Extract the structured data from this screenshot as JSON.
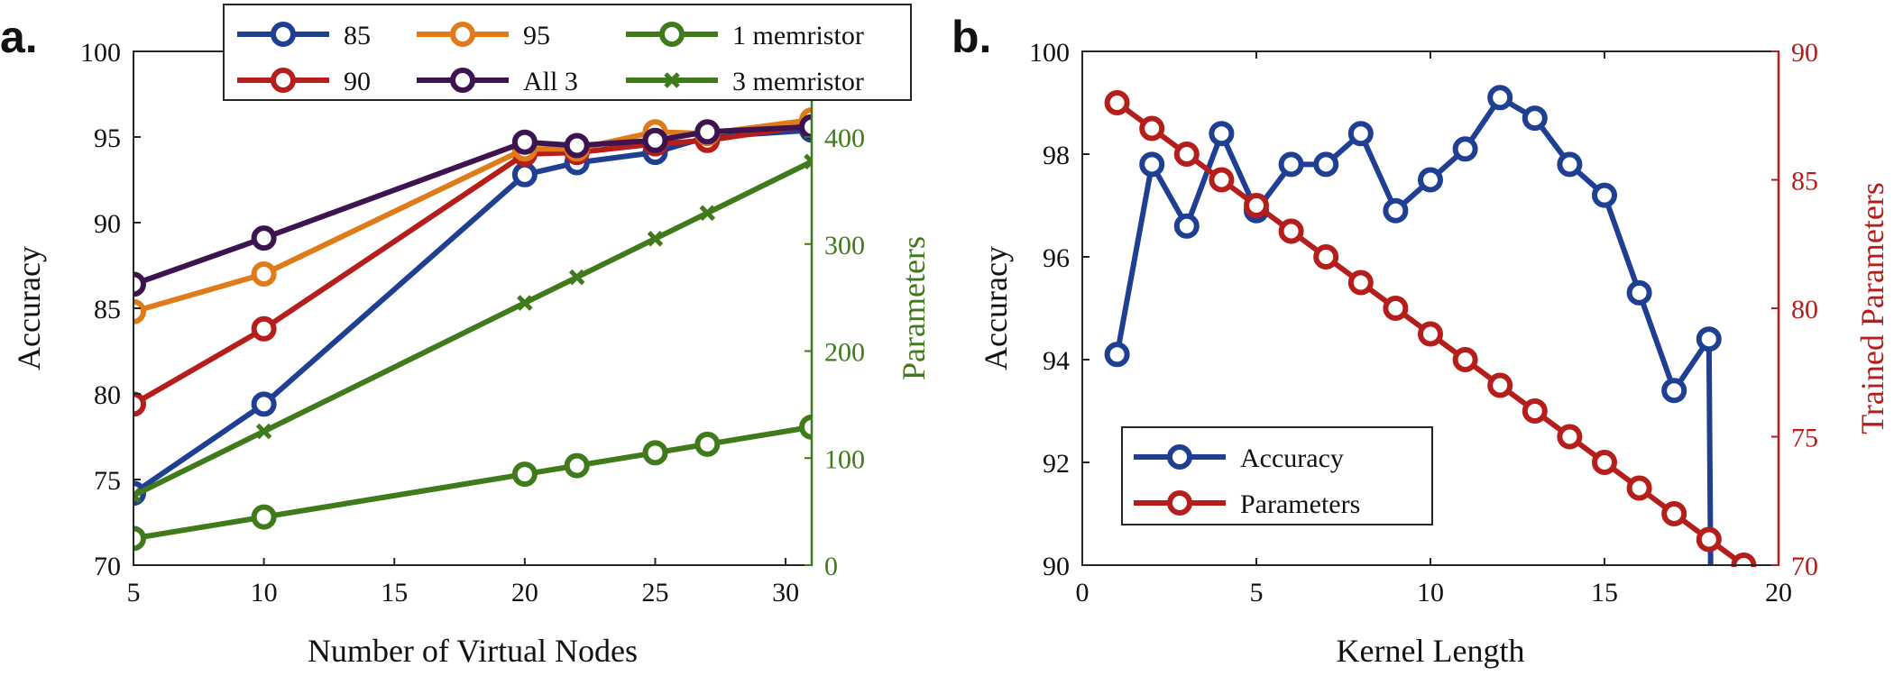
{
  "colors": {
    "blue": "#1f3f93",
    "red": "#b51e1a",
    "orange": "#e07b1a",
    "purple": "#3d1450",
    "green": "#3f7a1b",
    "axis": "#262626",
    "right_red": "#b51e1a"
  },
  "chart_data": [
    {
      "panel_label": "a.",
      "type": "line",
      "xlabel": "Number of Virtual Nodes",
      "ylabel": "Accuracy",
      "ylabel_right": "Parameters",
      "xlim": [
        5,
        31
      ],
      "ylim": [
        70,
        100
      ],
      "ylim_right": [
        0,
        480
      ],
      "x_ticks": [
        "5",
        "10",
        "15",
        "20",
        "25",
        "30"
      ],
      "y_ticks": [
        "70",
        "75",
        "80",
        "85",
        "90",
        "95",
        "100"
      ],
      "y_ticks_right": [
        "0",
        "100",
        "200",
        "300",
        "400"
      ],
      "legend_position": "top",
      "series": [
        {
          "name": "85",
          "color_key": "blue",
          "marker": "circle",
          "axis": "left",
          "x": [
            5,
            10,
            20,
            22,
            25,
            27,
            31
          ],
          "y": [
            74.2,
            79.4,
            92.8,
            93.5,
            94.1,
            95.0,
            95.4
          ]
        },
        {
          "name": "90",
          "color_key": "red",
          "marker": "circle",
          "axis": "left",
          "x": [
            5,
            10,
            20,
            22,
            25,
            27,
            31
          ],
          "y": [
            79.4,
            83.8,
            94.0,
            94.1,
            94.6,
            94.8,
            95.7
          ]
        },
        {
          "name": "95",
          "color_key": "orange",
          "marker": "circle",
          "axis": "left",
          "x": [
            5,
            10,
            20,
            22,
            25,
            27,
            31
          ],
          "y": [
            84.8,
            87.0,
            94.3,
            94.3,
            95.3,
            95.2,
            96.0
          ]
        },
        {
          "name": "All 3",
          "color_key": "purple",
          "marker": "circle",
          "axis": "left",
          "x": [
            5,
            10,
            20,
            22,
            25,
            27,
            31
          ],
          "y": [
            86.4,
            89.1,
            94.7,
            94.5,
            94.8,
            95.3,
            95.6
          ]
        },
        {
          "name": "1 memristor",
          "color_key": "green",
          "marker": "circle",
          "axis": "right",
          "x": [
            5,
            10,
            20,
            22,
            25,
            27,
            31
          ],
          "y": [
            25,
            45,
            85,
            93,
            105,
            113,
            129
          ]
        },
        {
          "name": "3 memristor",
          "color_key": "green",
          "marker": "x",
          "axis": "right",
          "x": [
            5,
            10,
            20,
            22,
            25,
            27,
            31
          ],
          "y": [
            65,
            125,
            245,
            269,
            305,
            329,
            377
          ]
        }
      ]
    },
    {
      "panel_label": "b.",
      "type": "line",
      "xlabel": "Kernel Length",
      "ylabel": "Accuracy",
      "ylabel_right": "Trained Parameters",
      "xlim": [
        0,
        20
      ],
      "ylim": [
        90,
        100
      ],
      "ylim_right": [
        70,
        90
      ],
      "x_ticks": [
        "0",
        "5",
        "10",
        "15",
        "20"
      ],
      "y_ticks": [
        "90",
        "92",
        "94",
        "96",
        "98",
        "100"
      ],
      "y_ticks_right": [
        "70",
        "75",
        "80",
        "85",
        "90"
      ],
      "legend_position": "bottom-left",
      "series": [
        {
          "name": "Accuracy",
          "color_key": "blue",
          "marker": "circle",
          "axis": "left",
          "x": [
            1,
            2,
            3,
            4,
            5,
            6,
            7,
            8,
            9,
            10,
            11,
            12,
            13,
            14,
            15,
            16,
            17,
            18,
            18.05
          ],
          "y": [
            94.1,
            97.8,
            96.6,
            98.4,
            96.9,
            97.8,
            97.8,
            98.4,
            96.9,
            97.5,
            98.1,
            99.1,
            98.7,
            97.8,
            97.2,
            95.3,
            93.4,
            94.4,
            90
          ]
        },
        {
          "name": "Parameters",
          "color_key": "red",
          "marker": "circle",
          "axis": "right",
          "x": [
            1,
            2,
            3,
            4,
            5,
            6,
            7,
            8,
            9,
            10,
            11,
            12,
            13,
            14,
            15,
            16,
            17,
            18,
            19
          ],
          "y": [
            88,
            87,
            86,
            85,
            84,
            83,
            82,
            81,
            80,
            79,
            78,
            77,
            76,
            75,
            74,
            73,
            72,
            71,
            70
          ]
        }
      ]
    }
  ]
}
